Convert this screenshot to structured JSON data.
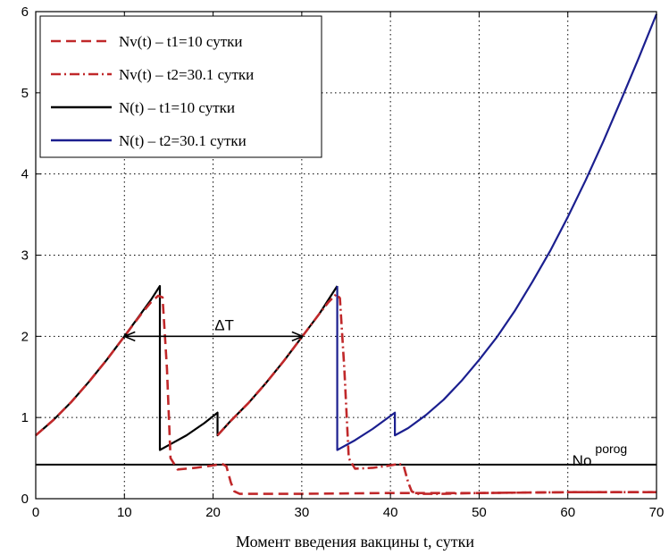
{
  "chart_data": {
    "type": "line",
    "xlabel": "Момент введения вакцины t, сутки",
    "ylabel": "",
    "xlim": [
      0,
      70
    ],
    "ylim": [
      0,
      6
    ],
    "xticks": [
      0,
      10,
      20,
      30,
      40,
      50,
      60,
      70
    ],
    "yticks": [
      0,
      1,
      2,
      3,
      4,
      5,
      6
    ],
    "grid": true,
    "legend_position": "top-left",
    "series": [
      {
        "name": "Nv(t) – t1=10 сутки",
        "color": "#c0282a",
        "style": "dashed",
        "x": [
          0,
          2,
          4,
          6,
          8,
          10,
          12,
          13,
          13.8,
          14.3,
          14.8,
          15.2,
          16,
          18,
          20,
          21,
          21.5,
          22,
          22.4,
          23,
          26,
          30,
          40,
          50,
          60,
          70
        ],
        "y": [
          0.78,
          0.97,
          1.19,
          1.44,
          1.71,
          2.0,
          2.29,
          2.42,
          2.5,
          2.48,
          1.6,
          0.5,
          0.36,
          0.38,
          0.41,
          0.43,
          0.4,
          0.2,
          0.09,
          0.06,
          0.06,
          0.06,
          0.07,
          0.07,
          0.08,
          0.08
        ]
      },
      {
        "name": "Nv(t) – t2=30.1 сутки",
        "color": "#c0282a",
        "style": "dashdot",
        "x": [
          20.5,
          22,
          24,
          26,
          28,
          30,
          32,
          33,
          33.9,
          34.3,
          34.8,
          35.3,
          36,
          38,
          40,
          41,
          41.5,
          42,
          42.4,
          43,
          46,
          50,
          60,
          70
        ],
        "y": [
          0.78,
          0.96,
          1.18,
          1.43,
          1.7,
          1.99,
          2.28,
          2.42,
          2.52,
          2.47,
          1.6,
          0.5,
          0.37,
          0.38,
          0.41,
          0.43,
          0.4,
          0.2,
          0.09,
          0.06,
          0.06,
          0.07,
          0.08,
          0.08
        ]
      },
      {
        "name": "N(t) – t1=10 сутки",
        "color": "#000000",
        "style": "solid",
        "x": [
          0,
          2,
          4,
          6,
          8,
          10,
          12,
          13,
          14,
          14,
          15,
          17,
          19,
          20.5,
          20.5,
          22,
          24,
          26,
          28,
          30,
          32,
          34
        ],
        "y": [
          0.78,
          0.97,
          1.19,
          1.44,
          1.71,
          2.0,
          2.3,
          2.45,
          2.62,
          0.6,
          0.66,
          0.78,
          0.93,
          1.06,
          0.78,
          0.96,
          1.18,
          1.43,
          1.7,
          1.99,
          2.28,
          2.62
        ]
      },
      {
        "name": "N(t) – t2=30.1 сутки",
        "color": "#1b1f8f",
        "style": "solid",
        "x": [
          34,
          34,
          36,
          38,
          40,
          40.5,
          40.5,
          42,
          44,
          46,
          48,
          50,
          52,
          54,
          56,
          58,
          60,
          62,
          64,
          66,
          68,
          70
        ],
        "y": [
          2.62,
          0.6,
          0.72,
          0.86,
          1.02,
          1.06,
          0.78,
          0.87,
          1.03,
          1.22,
          1.45,
          1.71,
          1.99,
          2.31,
          2.67,
          3.05,
          3.47,
          3.92,
          4.4,
          4.91,
          5.43,
          5.97
        ]
      }
    ],
    "threshold": {
      "y": 0.42,
      "label": "No",
      "label_sup": "porog",
      "label_x": 60.5,
      "label_y": 0.56
    },
    "interval_annotation": {
      "label": "ΔT",
      "x1": 10,
      "x2": 30.1,
      "y": 2.0
    }
  }
}
